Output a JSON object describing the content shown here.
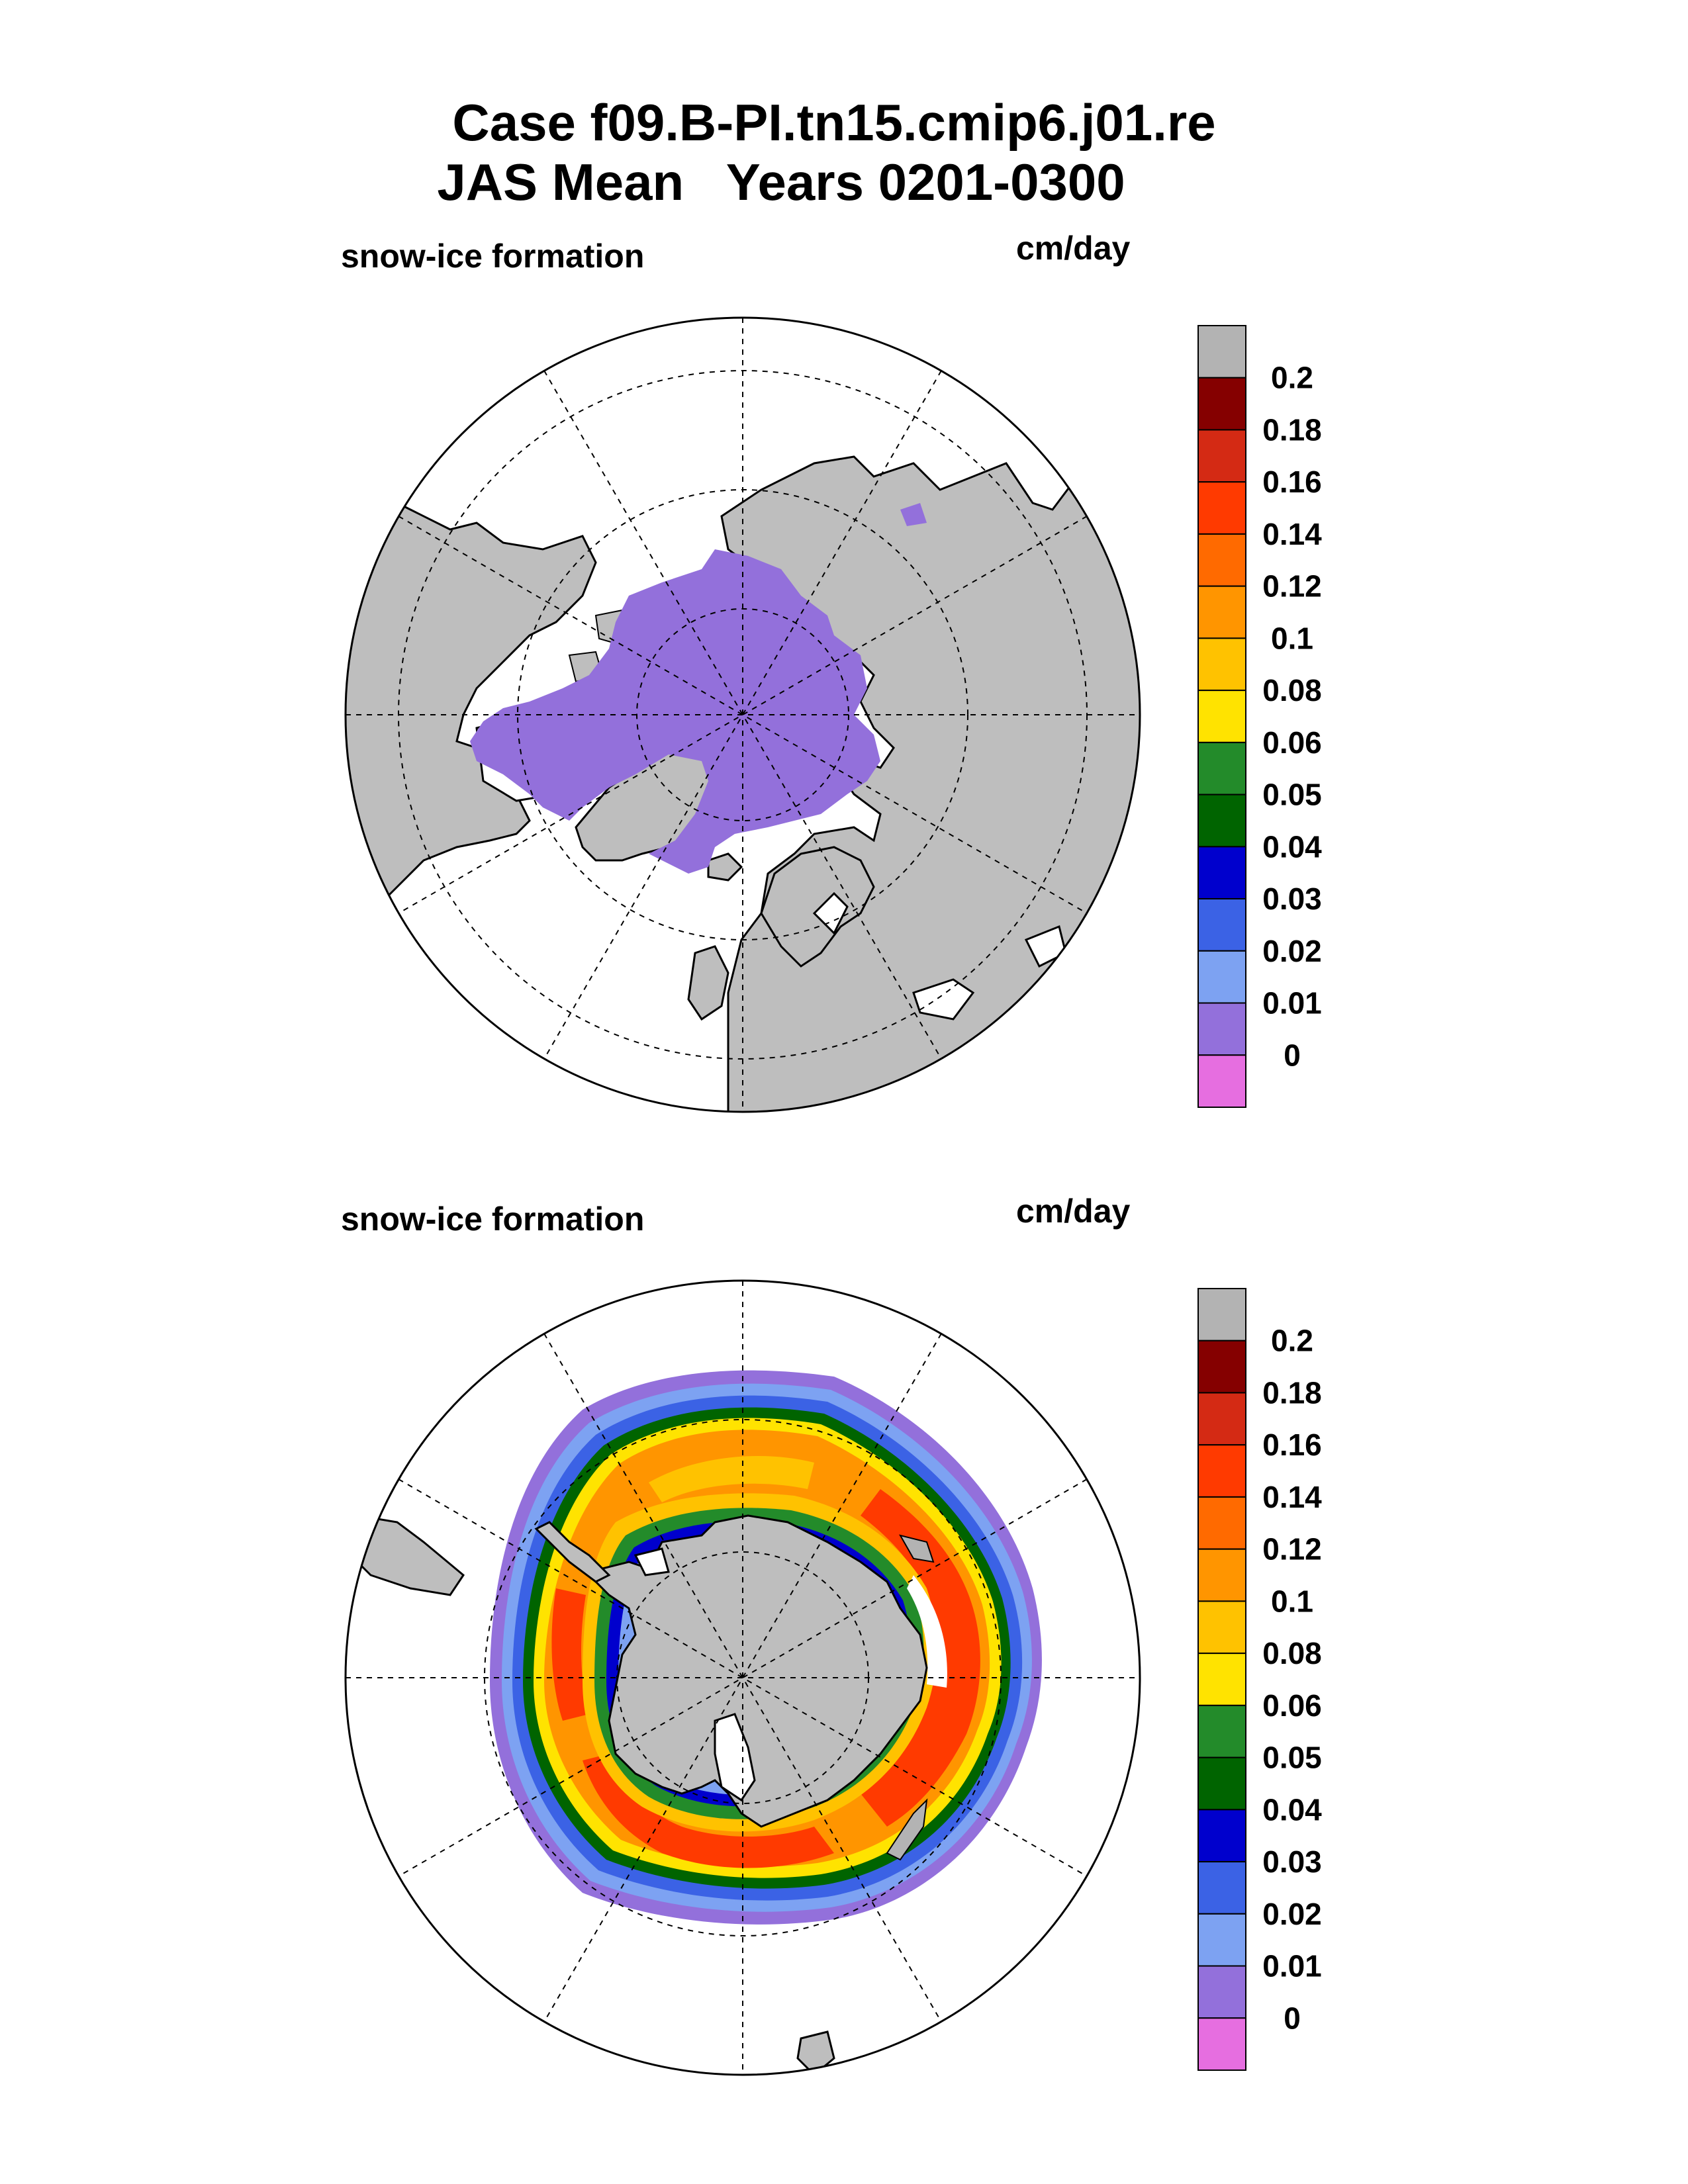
{
  "title": {
    "line1": "Case f09.B-PI.tn15.cmip6.j01.re",
    "line2": "JAS Mean   Years 0201-0300"
  },
  "panels": [
    {
      "name": "arctic",
      "variable_label": "snow-ice formation",
      "units_label": "cm/day",
      "hemisphere": "north"
    },
    {
      "name": "antarctic",
      "variable_label": "snow-ice formation",
      "units_label": "cm/day",
      "hemisphere": "south"
    }
  ],
  "colorbar": {
    "labels": [
      "0.2",
      "0.18",
      "0.16",
      "0.14",
      "0.12",
      "0.1",
      "0.08",
      "0.06",
      "0.05",
      "0.04",
      "0.03",
      "0.02",
      "0.01",
      "0"
    ],
    "colors_top_to_bottom": [
      "#b3b3b3",
      "#850000",
      "#d42a14",
      "#ff3a00",
      "#ff6a00",
      "#ff9500",
      "#ffc200",
      "#ffe300",
      "#238b2a",
      "#006400",
      "#0000cd",
      "#3b62e5",
      "#7da2f2",
      "#9370db",
      "#e66ee0"
    ]
  },
  "colors": {
    "land": "#bebebe",
    "ocean": "#ffffff",
    "sea_ice_zero": "#9370db"
  }
}
